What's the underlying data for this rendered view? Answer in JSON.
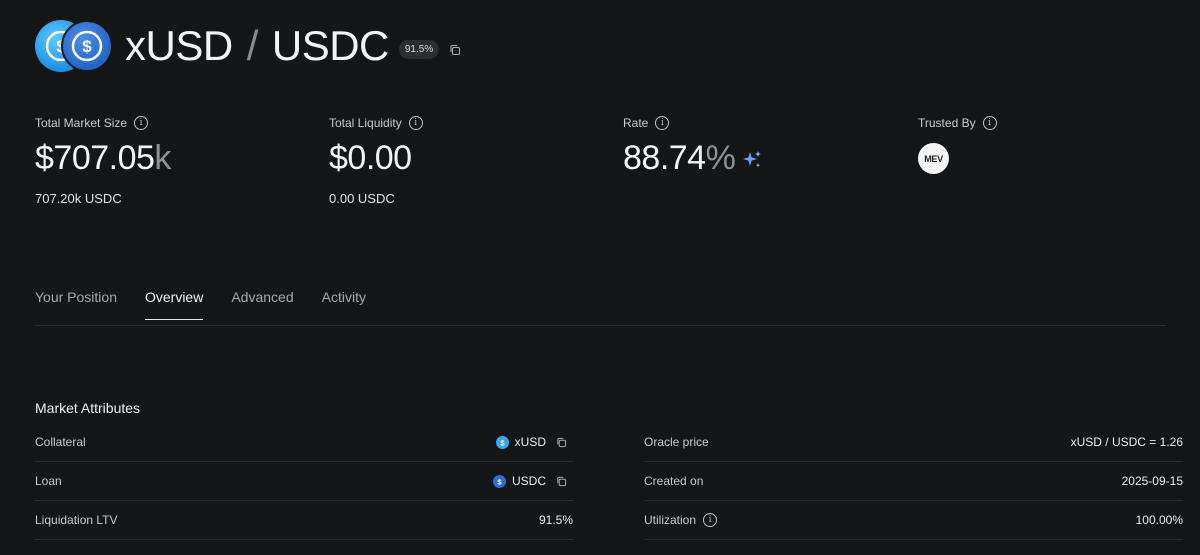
{
  "header": {
    "collateral_symbol": "xUSD",
    "separator": "/",
    "loan_symbol": "USDC",
    "lltv_badge": "91.5%",
    "token_icons": [
      "xusd-coin-icon",
      "usdc-coin-icon"
    ],
    "copy_icon": "copy-icon"
  },
  "stats": {
    "market_size": {
      "label": "Total Market Size",
      "value_main": "$707.05",
      "value_suffix": "k",
      "sub": "707.20k USDC"
    },
    "liquidity": {
      "label": "Total Liquidity",
      "value": "$0.00",
      "sub": "0.00 USDC"
    },
    "rate": {
      "label": "Rate",
      "value_main": "88.74",
      "value_suffix": "%",
      "icon": "sparkle-icon"
    },
    "trusted_by": {
      "label": "Trusted By",
      "logo_text": "MEV"
    }
  },
  "tabs": [
    {
      "label": "Your Position",
      "active": false
    },
    {
      "label": "Overview",
      "active": true
    },
    {
      "label": "Advanced",
      "active": false
    },
    {
      "label": "Activity",
      "active": false
    }
  ],
  "market_attributes": {
    "title": "Market Attributes",
    "left": [
      {
        "key": "Collateral",
        "value": "xUSD"
      },
      {
        "key": "Loan",
        "value": "USDC"
      },
      {
        "key": "Liquidation LTV",
        "value": "91.5%"
      }
    ],
    "right": [
      {
        "key": "Oracle price",
        "value": "xUSD / USDC = 1.26"
      },
      {
        "key": "Created on",
        "value": "2025-09-15"
      },
      {
        "key": "Utilization",
        "value": "100.00%"
      }
    ]
  },
  "colors": {
    "background": "#151617",
    "xusd_coin": "#3aa9ec",
    "usdc_coin": "#2f6fd0",
    "sparkle": "#6aa0ff"
  }
}
